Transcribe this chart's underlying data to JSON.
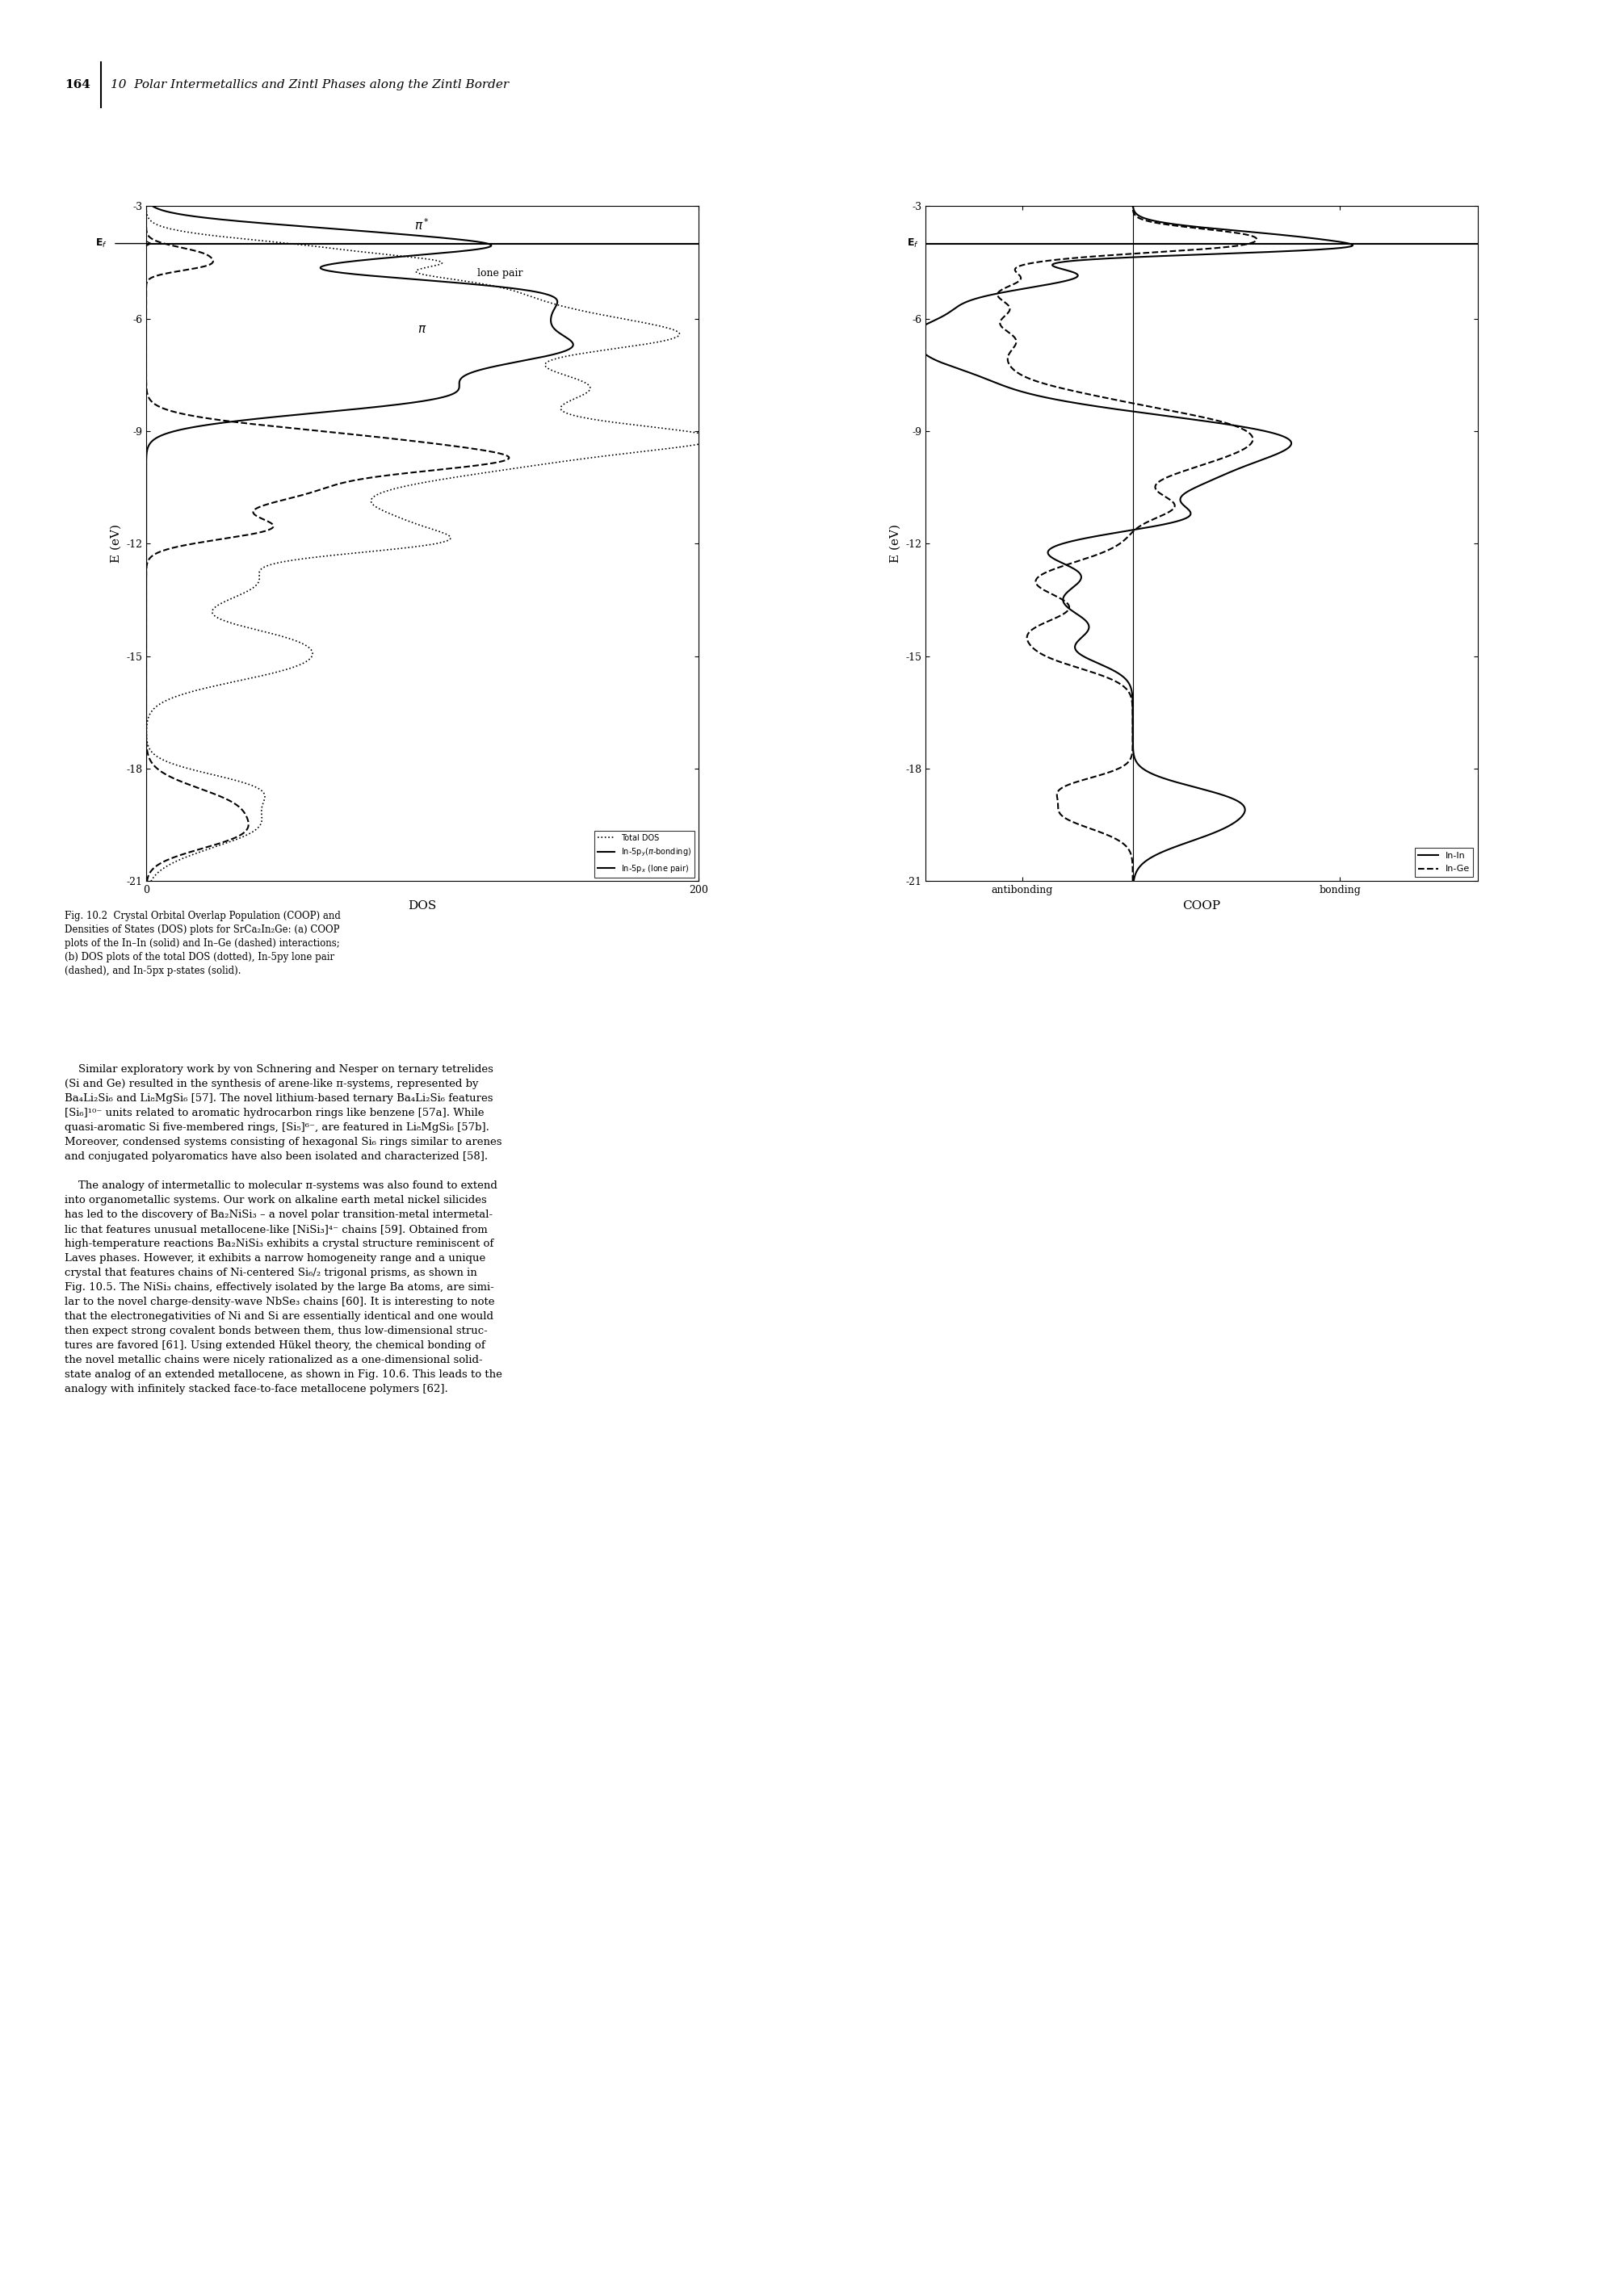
{
  "page_width": 20.11,
  "page_height": 28.35,
  "energy_range": [
    -21,
    -3
  ],
  "energy_ticks": [
    -3,
    -6,
    -9,
    -12,
    -15,
    -18,
    -21
  ],
  "fermi_energy": -4.0,
  "dos_xlabel": "DOS",
  "dos_xlim": [
    0,
    200
  ],
  "dos_xticks": [
    0,
    200
  ],
  "coop_xlabel": "COOP",
  "coop_xlim": [
    -0.15,
    0.25
  ],
  "coop_xticks_labels": [
    "antibonding",
    "bonding"
  ],
  "background_color": "#ffffff",
  "text_color": "#000000"
}
